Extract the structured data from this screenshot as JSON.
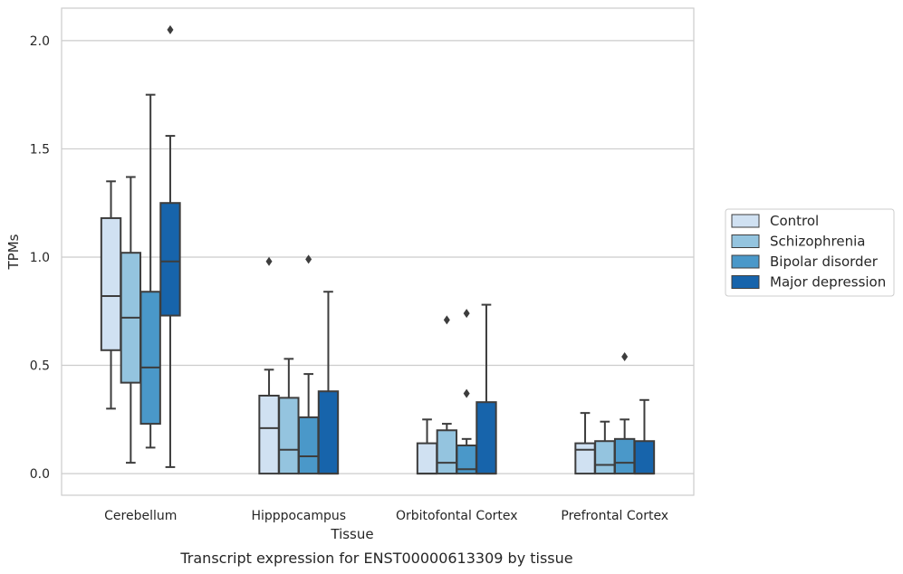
{
  "caption": "Transcript expression for ENST00000613309 by tissue",
  "chart_data": {
    "type": "boxplot",
    "xlabel": "Tissue",
    "ylabel": "TPMs",
    "ylim": [
      -0.1,
      2.15
    ],
    "yticks": [
      "0.0",
      "0.5",
      "1.0",
      "1.5",
      "2.0"
    ],
    "ytick_values": [
      0.0,
      0.5,
      1.0,
      1.5,
      2.0
    ],
    "grid": "horizontal",
    "legend_position": "right",
    "categories": [
      "Cerebellum",
      "Hipppocampus",
      "Orbitofontal Cortex",
      "Prefrontal Cortex"
    ],
    "series": [
      {
        "name": "Control",
        "color": "#d0e1f2",
        "boxes": [
          {
            "whislo": 0.3,
            "q1": 0.57,
            "med": 0.82,
            "q3": 1.18,
            "whishi": 1.35,
            "fliers": []
          },
          {
            "whislo": 0.0,
            "q1": 0.0,
            "med": 0.21,
            "q3": 0.36,
            "whishi": 0.48,
            "fliers": [
              0.98
            ]
          },
          {
            "whislo": 0.0,
            "q1": 0.0,
            "med": 0.0,
            "q3": 0.14,
            "whishi": 0.25,
            "fliers": []
          },
          {
            "whislo": 0.0,
            "q1": 0.0,
            "med": 0.11,
            "q3": 0.14,
            "whishi": 0.28,
            "fliers": []
          }
        ]
      },
      {
        "name": "Schizophrenia",
        "color": "#94c4df",
        "boxes": [
          {
            "whislo": 0.05,
            "q1": 0.42,
            "med": 0.72,
            "q3": 1.02,
            "whishi": 1.37,
            "fliers": []
          },
          {
            "whislo": 0.0,
            "q1": 0.0,
            "med": 0.11,
            "q3": 0.35,
            "whishi": 0.53,
            "fliers": []
          },
          {
            "whislo": 0.0,
            "q1": 0.0,
            "med": 0.05,
            "q3": 0.2,
            "whishi": 0.23,
            "fliers": [
              0.71
            ]
          },
          {
            "whislo": 0.0,
            "q1": 0.0,
            "med": 0.04,
            "q3": 0.15,
            "whishi": 0.24,
            "fliers": []
          }
        ]
      },
      {
        "name": "Bipolar disorder",
        "color": "#4a98c9",
        "boxes": [
          {
            "whislo": 0.12,
            "q1": 0.23,
            "med": 0.49,
            "q3": 0.84,
            "whishi": 1.75,
            "fliers": []
          },
          {
            "whislo": 0.0,
            "q1": 0.0,
            "med": 0.08,
            "q3": 0.26,
            "whishi": 0.46,
            "fliers": [
              0.99
            ]
          },
          {
            "whislo": 0.0,
            "q1": 0.0,
            "med": 0.02,
            "q3": 0.13,
            "whishi": 0.16,
            "fliers": [
              0.74,
              0.37
            ]
          },
          {
            "whislo": 0.0,
            "q1": 0.0,
            "med": 0.05,
            "q3": 0.16,
            "whishi": 0.25,
            "fliers": [
              0.54
            ]
          }
        ]
      },
      {
        "name": "Major depression",
        "color": "#1764ab",
        "boxes": [
          {
            "whislo": 0.03,
            "q1": 0.73,
            "med": 0.98,
            "q3": 1.25,
            "whishi": 1.56,
            "fliers": [
              2.05
            ]
          },
          {
            "whislo": 0.0,
            "q1": 0.0,
            "med": 0.0,
            "q3": 0.38,
            "whishi": 0.84,
            "fliers": []
          },
          {
            "whislo": 0.0,
            "q1": 0.0,
            "med": 0.0,
            "q3": 0.33,
            "whishi": 0.78,
            "fliers": []
          },
          {
            "whislo": 0.0,
            "q1": 0.0,
            "med": 0.0,
            "q3": 0.15,
            "whishi": 0.34,
            "fliers": []
          }
        ]
      }
    ]
  }
}
